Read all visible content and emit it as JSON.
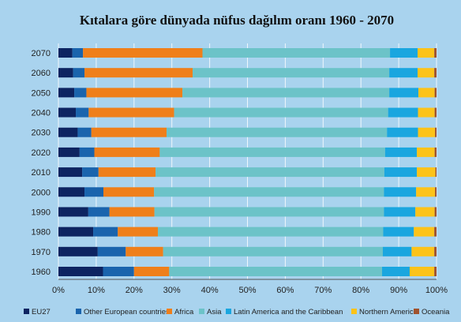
{
  "chart_data": {
    "type": "bar",
    "orientation": "horizontal",
    "stacked": true,
    "normalized": true,
    "title": "Kıtalara göre dünyada nüfus dağılım oranı 1960 - 2070",
    "categories": [
      "1960",
      "1970",
      "1980",
      "1990",
      "2000",
      "2010",
      "2020",
      "2030",
      "2040",
      "2050",
      "2060",
      "2070"
    ],
    "xlim": [
      0,
      100
    ],
    "xticks": [
      "0%",
      "10%",
      "20%",
      "30%",
      "40%",
      "50%",
      "60%",
      "70%",
      "80%",
      "90%",
      "100%"
    ],
    "grid": true,
    "legend_position": "bottom",
    "series": [
      {
        "name": "EU27",
        "color": "#0d2461",
        "values": [
          11.8,
          10.4,
          9.2,
          7.9,
          6.9,
          6.3,
          5.6,
          5.1,
          4.6,
          4.2,
          3.9,
          3.7
        ]
      },
      {
        "name": "Other European countries",
        "color": "#1a64ad",
        "values": [
          8.2,
          7.4,
          6.5,
          5.6,
          5.0,
          4.3,
          3.9,
          3.6,
          3.4,
          3.2,
          3.0,
          2.8
        ]
      },
      {
        "name": "Africa",
        "color": "#ef7f1a",
        "values": [
          9.3,
          9.9,
          10.6,
          11.9,
          13.4,
          15.1,
          17.3,
          19.9,
          22.6,
          25.4,
          28.6,
          31.6
        ]
      },
      {
        "name": "Asia",
        "color": "#6cc3c8",
        "values": [
          56.3,
          58.1,
          59.6,
          60.7,
          60.8,
          60.5,
          59.6,
          58.3,
          56.6,
          54.7,
          52.0,
          49.6
        ]
      },
      {
        "name": "Latin America and the Caribbean",
        "color": "#1aa6df",
        "values": [
          7.3,
          7.6,
          8.1,
          8.3,
          8.5,
          8.6,
          8.4,
          8.2,
          7.9,
          7.7,
          7.5,
          7.3
        ]
      },
      {
        "name": "Northern America",
        "color": "#fcc319",
        "values": [
          6.5,
          6.0,
          5.4,
          5.1,
          5.0,
          4.9,
          4.7,
          4.5,
          4.4,
          4.3,
          4.4,
          4.4
        ]
      },
      {
        "name": "Oceania",
        "color": "#a0522d",
        "values": [
          0.6,
          0.6,
          0.6,
          0.5,
          0.4,
          0.3,
          0.5,
          0.4,
          0.5,
          0.5,
          0.6,
          0.6
        ]
      }
    ]
  }
}
